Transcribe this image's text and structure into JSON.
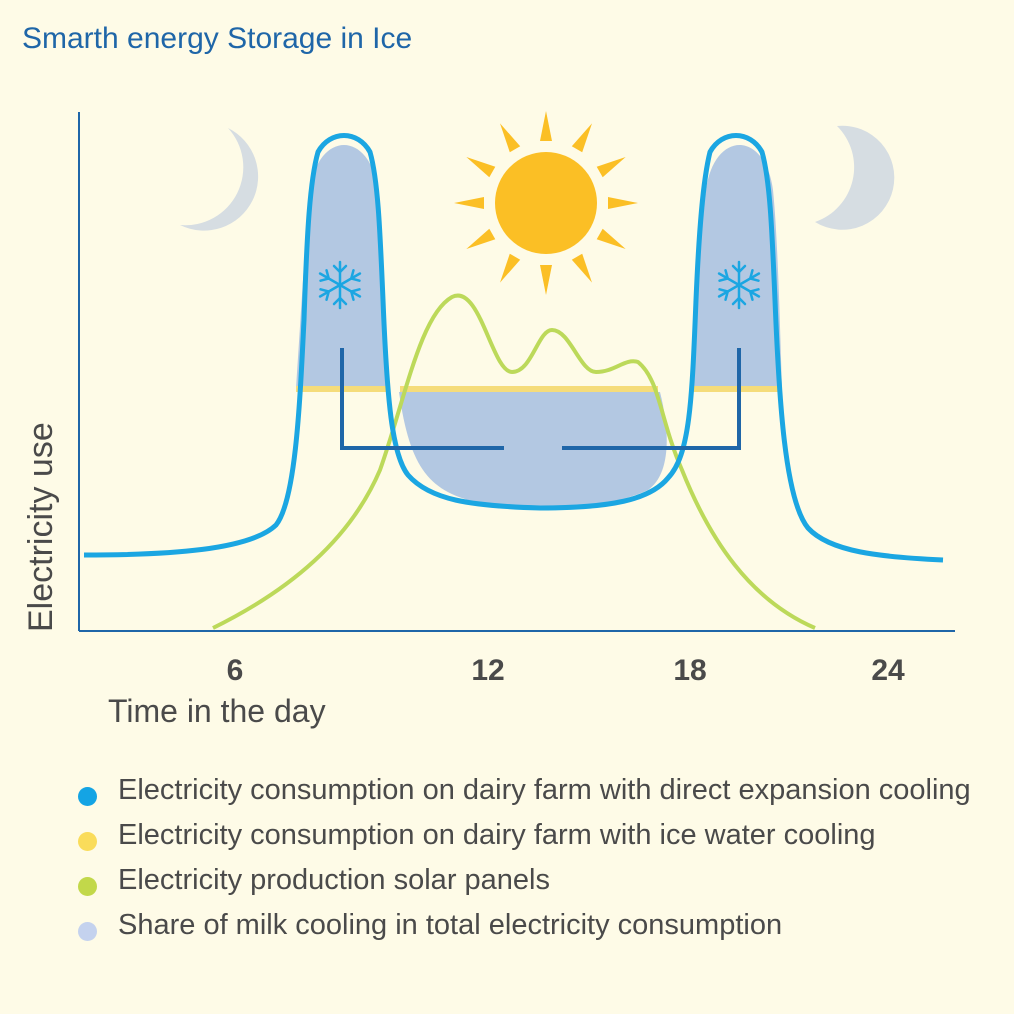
{
  "title": "Smarth energy Storage in Ice",
  "axes": {
    "y_label": "Electricity use",
    "x_label": "Time in the day",
    "x_ticks": [
      "6",
      "12",
      "18",
      "24"
    ]
  },
  "icons": {
    "left_moon": "crescent-moon-icon",
    "right_moon": "crescent-moon-icon",
    "sun": "sun-icon",
    "left_snowflake": "snowflake-icon",
    "right_snowflake": "snowflake-icon"
  },
  "colors": {
    "background": "#fefbe7",
    "title": "#1f66a8",
    "direct_expansion": "#1ba6e2",
    "ice_water": "#f5dc7a",
    "solar": "#bcd95a",
    "milk_cooling_share": "#b3c8e2",
    "storage_bracket": "#1f66a8",
    "sun": "#fbbf25",
    "moon": "#d6dde2"
  },
  "legend": [
    {
      "label": "Electricity consumption on dairy farm with direct expansion cooling",
      "color": "#14a4e4"
    },
    {
      "label": "Electricity consumption on dairy farm with ice water cooling",
      "color": "#fadc5a"
    },
    {
      "label": "Electricity production solar panels",
      "color": "#c2d84a"
    },
    {
      "label": "Share of milk cooling in total electricity consumption",
      "color": "#c4d2ee"
    }
  ]
}
